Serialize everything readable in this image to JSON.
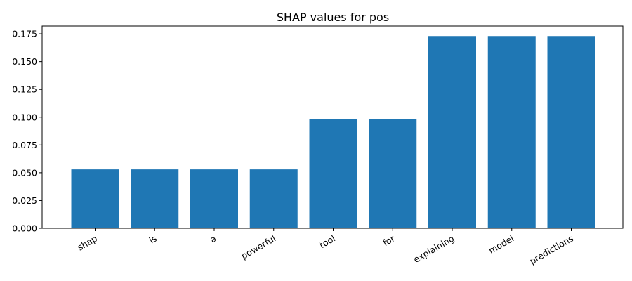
{
  "chart_data": {
    "type": "bar",
    "title": "SHAP values for pos",
    "xlabel": "",
    "ylabel": "",
    "categories": [
      "shap",
      "is",
      "a",
      "powerful",
      "tool",
      "for",
      "explaining",
      "model",
      "predictions"
    ],
    "values": [
      0.053,
      0.053,
      0.053,
      0.053,
      0.098,
      0.098,
      0.173,
      0.173,
      0.173
    ],
    "ylim": [
      0,
      0.182
    ],
    "yticks": [
      "0.000",
      "0.025",
      "0.050",
      "0.075",
      "0.100",
      "0.125",
      "0.150",
      "0.175"
    ],
    "bar_color": "#1f77b4",
    "grid": false,
    "legend": "none"
  }
}
